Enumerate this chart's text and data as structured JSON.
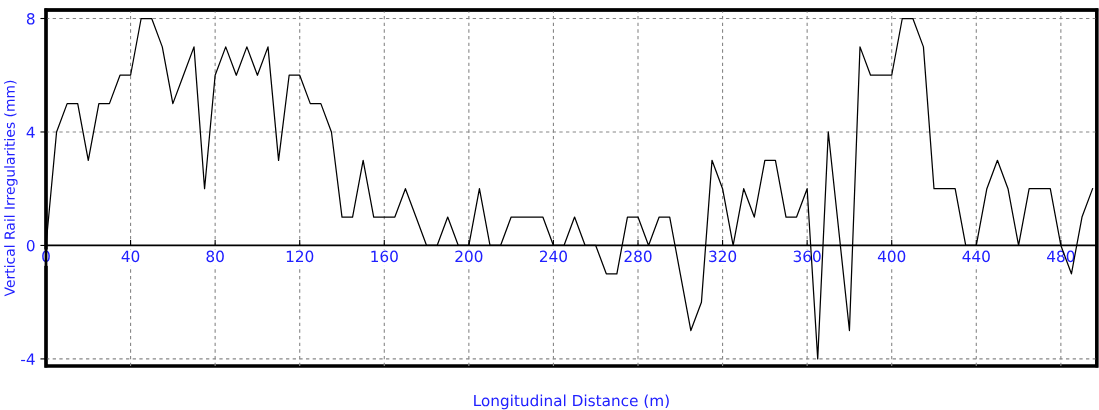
{
  "chart_data": {
    "type": "line",
    "xlabel": "Longitudinal Distance (m)",
    "ylabel": "Vertical Rail Irregularities (mm)",
    "x": [
      0,
      5,
      10,
      15,
      20,
      25,
      30,
      35,
      40,
      45,
      50,
      55,
      60,
      65,
      70,
      75,
      80,
      85,
      90,
      95,
      100,
      105,
      110,
      115,
      120,
      125,
      130,
      135,
      140,
      145,
      150,
      155,
      160,
      165,
      170,
      175,
      180,
      185,
      190,
      195,
      200,
      205,
      210,
      215,
      220,
      225,
      230,
      235,
      240,
      245,
      250,
      255,
      260,
      265,
      270,
      275,
      280,
      285,
      290,
      295,
      300,
      305,
      310,
      315,
      320,
      325,
      330,
      335,
      340,
      345,
      350,
      355,
      360,
      365,
      370,
      380,
      385,
      390,
      395,
      400,
      405,
      410,
      415,
      420,
      425,
      430,
      435,
      440,
      445,
      450,
      455,
      460,
      465,
      470,
      475,
      480,
      485,
      490,
      495
    ],
    "series": [
      {
        "color": "#000000",
        "values": [
          0,
          4,
          5,
          5,
          3,
          5,
          5,
          6,
          6,
          8,
          8,
          7,
          5,
          6,
          7,
          2,
          6,
          7,
          6,
          7,
          6,
          7,
          3,
          6,
          6,
          5,
          5,
          4,
          1,
          1,
          3,
          1,
          1,
          1,
          2,
          1,
          0,
          0,
          1,
          0,
          0,
          2,
          0,
          0,
          1,
          1,
          1,
          1,
          0,
          0,
          1,
          0,
          0,
          -1,
          -1,
          1,
          1,
          0,
          1,
          1,
          -1,
          -3,
          -2,
          3,
          2,
          0,
          2,
          1,
          3,
          3,
          1,
          1,
          2,
          -4,
          4,
          -3,
          7,
          6,
          6,
          6,
          8,
          8,
          7,
          2,
          2,
          2,
          0,
          0,
          2,
          3,
          2,
          0,
          2,
          2,
          2,
          0,
          -1,
          1,
          2
        ]
      }
    ],
    "xlim": [
      0,
      497
    ],
    "ylim": [
      -4.25,
      8.3
    ],
    "xticks": [
      0,
      40,
      80,
      120,
      160,
      200,
      240,
      280,
      320,
      360,
      400,
      440,
      480
    ],
    "yticks": [
      -4,
      0,
      4,
      8
    ],
    "grid": true,
    "line_style": "solid",
    "marker": "none"
  }
}
